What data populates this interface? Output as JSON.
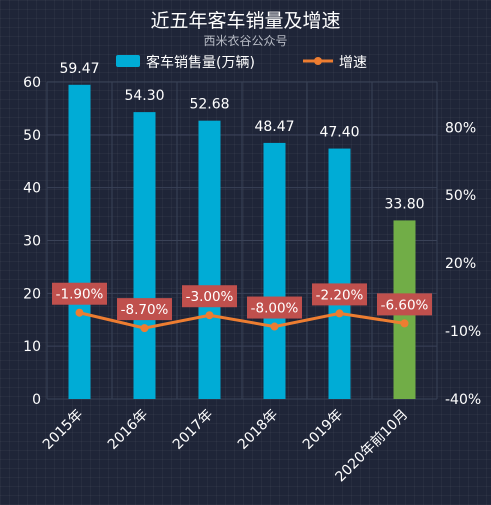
{
  "chart_data": {
    "type": "bar",
    "title": "近五年客车销量及增速",
    "subtitle": "西米衣谷公众号",
    "categories": [
      "2015年",
      "2016年",
      "2017年",
      "2018年",
      "2019年",
      "2020年前10月"
    ],
    "series": [
      {
        "name": "客车销售量(万辆)",
        "type": "bar",
        "axis": "left",
        "values": [
          59.47,
          54.3,
          52.68,
          48.47,
          47.4,
          33.8
        ],
        "labels": [
          "59.47",
          "54.30",
          "52.68",
          "48.47",
          "47.40",
          "33.80"
        ],
        "color": "#00acd6",
        "highlight_color": "#71ad47"
      },
      {
        "name": "增速",
        "type": "line",
        "axis": "right",
        "values": [
          -1.9,
          -8.7,
          -3.0,
          -8.0,
          -2.2,
          -6.6
        ],
        "labels": [
          "-1.90%",
          "-8.70%",
          "-3.00%",
          "-8.00%",
          "-2.20%",
          "-6.60%"
        ],
        "color": "#ed7d31",
        "label_bg": "#c0504d"
      }
    ],
    "y_left": {
      "ticks": [
        "0",
        "10",
        "20",
        "30",
        "40",
        "50",
        "60"
      ],
      "ylim": [
        0,
        60
      ]
    },
    "y_right": {
      "ticks": [
        "-40%",
        "-10%",
        "20%",
        "50%",
        "80%"
      ],
      "ylim": [
        -40,
        100
      ]
    },
    "legend_position": "top-center",
    "grid": true
  }
}
